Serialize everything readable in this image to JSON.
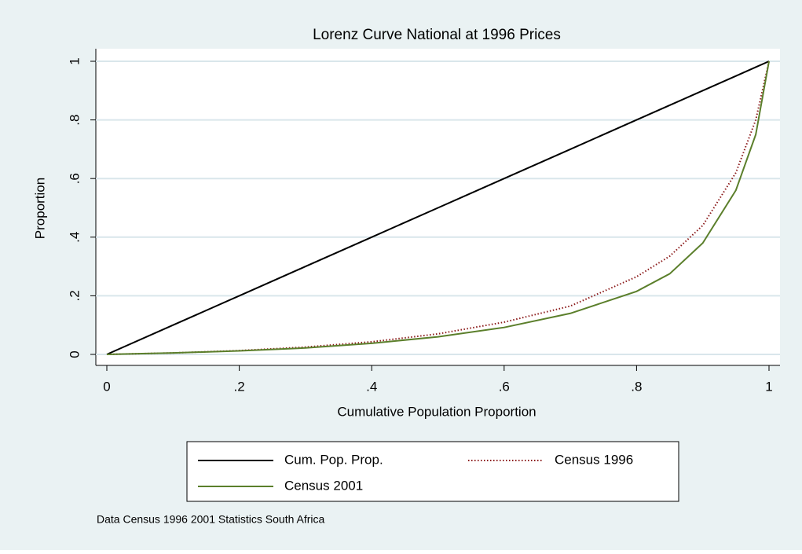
{
  "chart_data": {
    "type": "line",
    "title": "Lorenz Curve National at 1996 Prices",
    "x_label": "Cumulative Population Proportion",
    "y_label": "Proportion",
    "note": "Data Census 1996 2001 Statistics South Africa",
    "x": [
      0,
      0.1,
      0.2,
      0.3,
      0.4,
      0.5,
      0.6,
      0.7,
      0.8,
      0.85,
      0.9,
      0.95,
      0.98,
      1
    ],
    "series": [
      {
        "name": "Cum. Pop. Prop.",
        "color": "#000000",
        "dash": "solid",
        "values": [
          0,
          0.1,
          0.2,
          0.3,
          0.4,
          0.5,
          0.6,
          0.7,
          0.8,
          0.85,
          0.9,
          0.95,
          0.98,
          1
        ]
      },
      {
        "name": "Census 1996",
        "color": "#8b1a1a",
        "dash": "dotted",
        "values": [
          0,
          0.005,
          0.013,
          0.025,
          0.043,
          0.07,
          0.11,
          0.165,
          0.265,
          0.335,
          0.44,
          0.62,
          0.8,
          1
        ]
      },
      {
        "name": "Census 2001",
        "color": "#5b7f2b",
        "dash": "solid",
        "values": [
          0,
          0.005,
          0.012,
          0.022,
          0.038,
          0.06,
          0.092,
          0.14,
          0.215,
          0.275,
          0.38,
          0.56,
          0.75,
          1
        ]
      }
    ],
    "xlim": [
      0,
      1
    ],
    "ylim": [
      0,
      1
    ],
    "xticks": [
      0,
      {
        "value": 0.2,
        "label": ".2"
      },
      {
        "value": 0.4,
        "label": ".4"
      },
      {
        "value": 0.6,
        "label": ".6"
      },
      {
        "value": 0.8,
        "label": ".8"
      },
      1
    ],
    "yticks": [
      0,
      {
        "value": 0.2,
        "label": ".2"
      },
      {
        "value": 0.4,
        "label": ".4"
      },
      {
        "value": 0.6,
        "label": ".6"
      },
      {
        "value": 0.8,
        "label": ".8"
      },
      1
    ],
    "grid": true,
    "legend": "bottom"
  }
}
